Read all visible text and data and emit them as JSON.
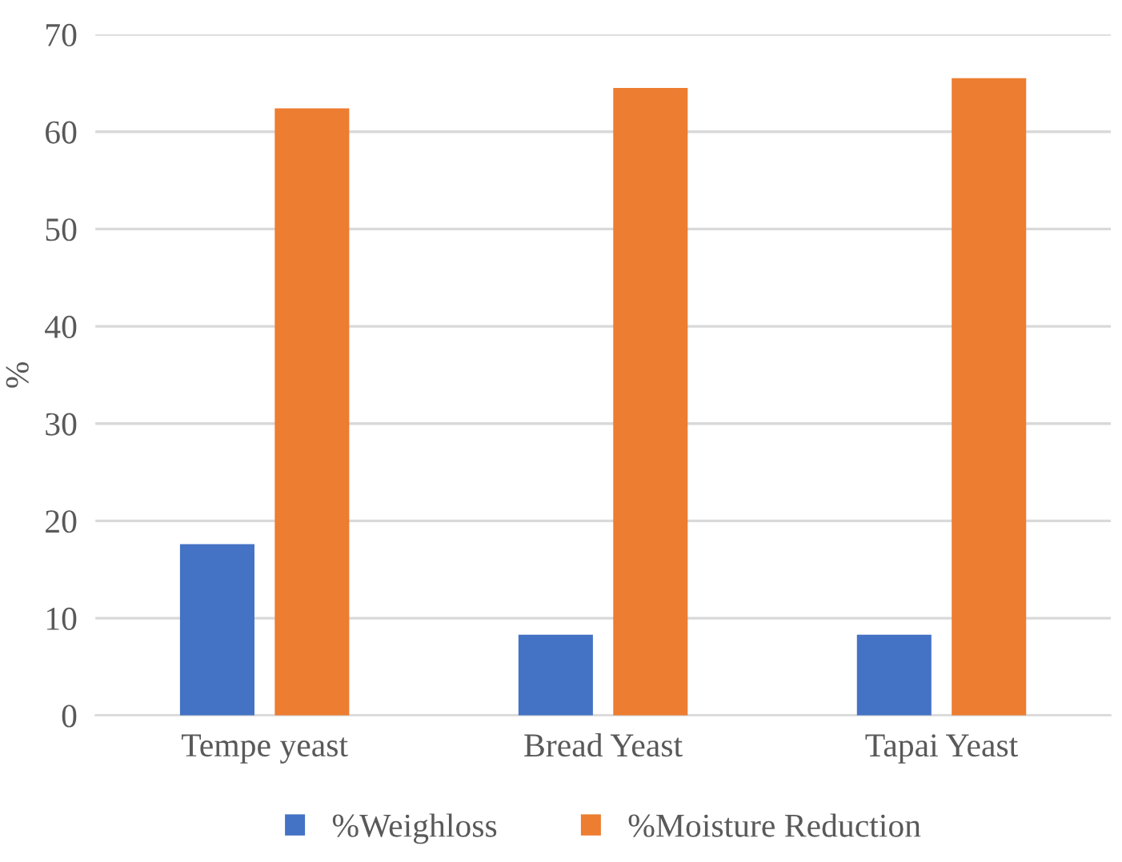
{
  "chart_data": {
    "type": "bar",
    "ylabel": "%",
    "categories": [
      "Tempe yeast",
      "Bread Yeast",
      "Tapai Yeast"
    ],
    "series": [
      {
        "name": "%Weighloss",
        "color": "#4472c4",
        "values": [
          17.6,
          8.3,
          8.3
        ]
      },
      {
        "name": "%Moisture Reduction",
        "color": "#ed7d31",
        "values": [
          62.4,
          64.5,
          65.5
        ]
      }
    ],
    "ylim": [
      0,
      70
    ],
    "yticks": [
      0,
      10,
      20,
      30,
      40,
      50,
      60,
      70
    ],
    "grid": "y",
    "legend": "bottom"
  }
}
